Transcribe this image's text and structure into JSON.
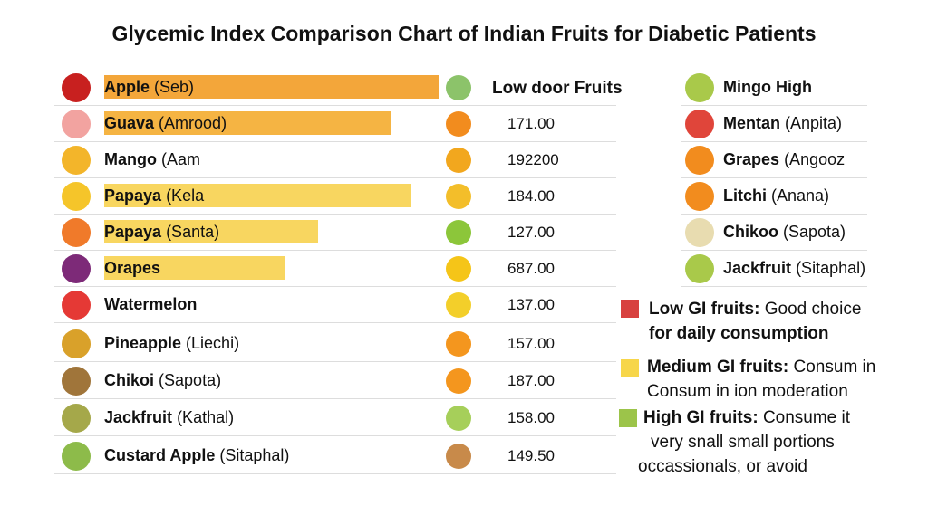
{
  "chart_data": {
    "type": "bar",
    "title": "Glycemic Index Comparison Chart of Indian Fruits for Diabetic Patients",
    "categories": [
      {
        "name": "Apple",
        "alt": "(Seb)",
        "bar_fraction": 1.0,
        "bar_color": "#f3a63a",
        "icon_color": "#c8201f"
      },
      {
        "name": "Guava",
        "alt": "(Amrood)",
        "bar_fraction": 0.86,
        "bar_color": "#f5b443",
        "icon_color": "#f2a3a0"
      },
      {
        "name": "Mango",
        "alt": "(Aam",
        "bar_fraction": 0,
        "bar_color": "#f7d35b",
        "icon_color": "#f3b52a"
      },
      {
        "name": "Papaya",
        "alt": "(Kela",
        "bar_fraction": 0.92,
        "bar_color": "#f8d660",
        "icon_color": "#f5c52a"
      },
      {
        "name": "Papaya",
        "alt": "(Santa)",
        "bar_fraction": 0.64,
        "bar_color": "#f8d660",
        "icon_color": "#f07a2a"
      },
      {
        "name": "Orapes",
        "alt": "",
        "bar_fraction": 0.54,
        "bar_color": "#f8d660",
        "icon_color": "#7d2a78"
      },
      {
        "name": "Watermelon",
        "alt": "",
        "bar_fraction": 0,
        "bar_color": "#f8d660",
        "icon_color": "#e53935"
      },
      {
        "name": "Pineapple",
        "alt": "(Liechi)",
        "bar_fraction": 0,
        "bar_color": "#f8d660",
        "icon_color": "#d9a12a"
      },
      {
        "name": "Chikoi",
        "alt": "(Sapota)",
        "bar_fraction": 0,
        "bar_color": "#f8d660",
        "icon_color": "#a0753a"
      },
      {
        "name": "Jackfruit",
        "alt": "(Kathal)",
        "bar_fraction": 0,
        "bar_color": "#f8d660",
        "icon_color": "#a5a84a"
      },
      {
        "name": "Custard Apple",
        "alt": "(Sitaphal)",
        "bar_fraction": 0,
        "bar_color": "#f8d660",
        "icon_color": "#8dbb4a"
      }
    ],
    "values_header": "Low door Fruits",
    "values": [
      "",
      "171.00",
      "192200",
      "184.00",
      "127.00",
      "687.00",
      "137.00",
      "157.00",
      "187.00",
      "158.00",
      "149.50"
    ],
    "value_icon_colors": [
      "#8cc36a",
      "#f28c1e",
      "#f2a71e",
      "#f3be2a",
      "#8cc63a",
      "#f5c518",
      "#f3cf2a",
      "#f4961e",
      "#f4961e",
      "#a6cf5a",
      "#c88a4a"
    ],
    "right_list": [
      {
        "name": "Mingo High",
        "alt": "",
        "icon_color": "#a9c94a"
      },
      {
        "name": "Mentan",
        "alt": "(Anpita)",
        "icon_color": "#e0453a"
      },
      {
        "name": "Grapes",
        "alt": "(Angooz",
        "icon_color": "#f28c1e"
      },
      {
        "name": "Litchi",
        "alt": "(Anana)",
        "icon_color": "#f28c1e"
      },
      {
        "name": "Chikoo",
        "alt": "(Sapota)",
        "icon_color": "#e8dcb0"
      },
      {
        "name": "Jackfruit",
        "alt": "(Sitaphal)",
        "icon_color": "#a9c94a"
      }
    ],
    "legend": [
      {
        "bold": "Low GI fruits:",
        "line1": "Good choice",
        "line2": "for daily consumption",
        "line3": "",
        "color": "#d8413f"
      },
      {
        "bold": "Medium GI fruits:",
        "line1": "Consum in",
        "line2": "Consum in ion moderation",
        "line3": "",
        "color": "#f7d64a"
      },
      {
        "bold": "High GI fruits:",
        "line1": "Consume it",
        "line2": "very snall small portions",
        "line3": "occassionals, or avoid",
        "color": "#9cc44a"
      }
    ]
  }
}
